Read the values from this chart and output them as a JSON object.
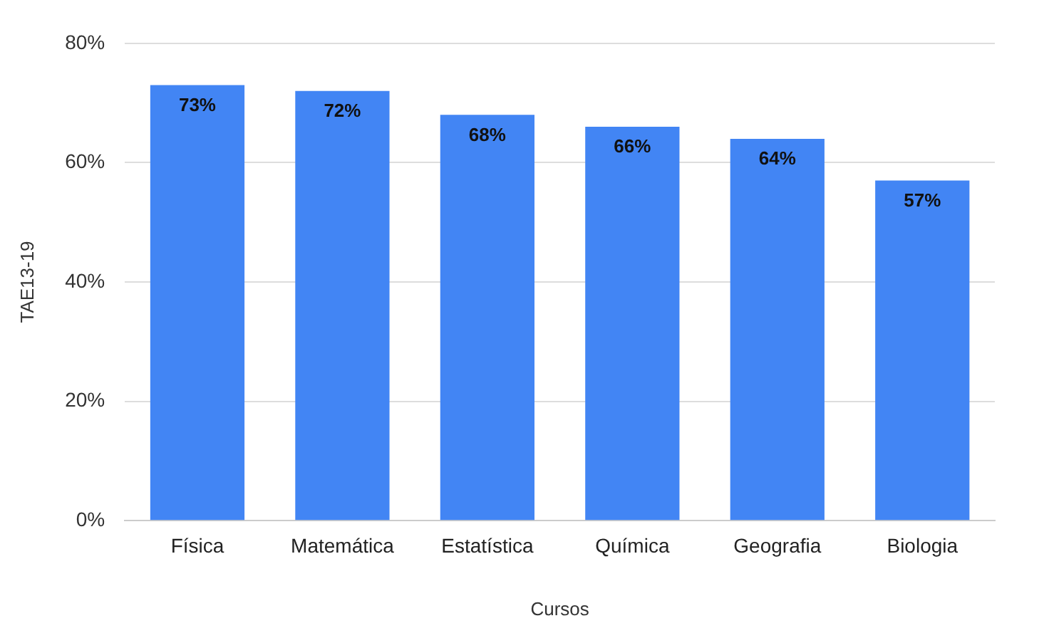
{
  "chart_data": {
    "type": "bar",
    "xlabel": "Cursos",
    "ylabel": "TAE13-19",
    "categories": [
      "Física",
      "Matemática",
      "Estatística",
      "Química",
      "Geografia",
      "Biologia"
    ],
    "values": [
      73,
      72,
      68,
      66,
      64,
      57
    ],
    "value_labels": [
      "73%",
      "72%",
      "68%",
      "66%",
      "64%",
      "57%"
    ],
    "color": "#4285f4",
    "ylim": [
      0,
      80
    ],
    "yticks": [
      {
        "value": 0,
        "label": "0%"
      },
      {
        "value": 20,
        "label": "20%"
      },
      {
        "value": 40,
        "label": "40%"
      },
      {
        "value": 60,
        "label": "60%"
      },
      {
        "value": 80,
        "label": "80%"
      }
    ],
    "grid": "y",
    "legend": false
  }
}
